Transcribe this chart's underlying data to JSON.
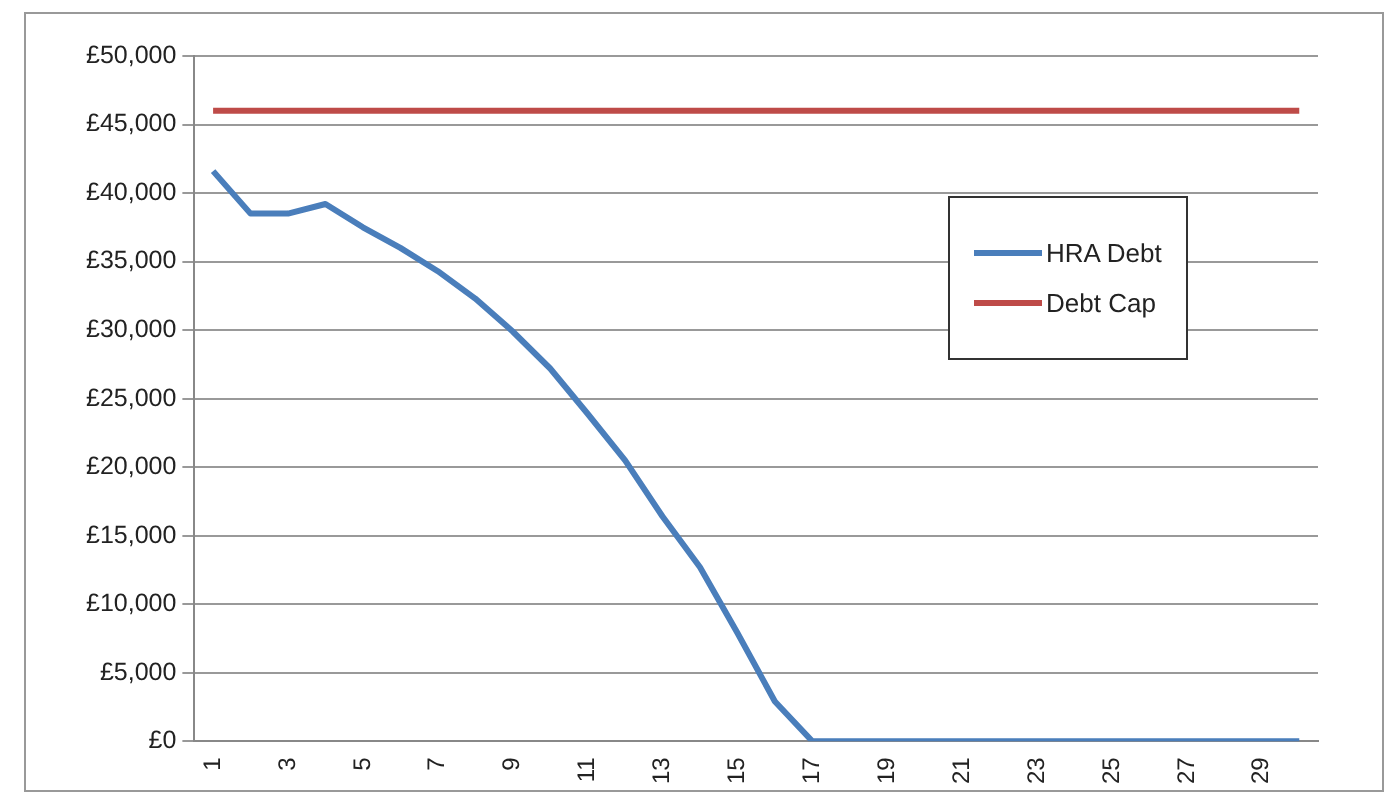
{
  "chart_data": {
    "type": "line",
    "categories": [
      "1",
      null,
      "3",
      null,
      "5",
      null,
      "7",
      null,
      "9",
      null,
      "11",
      null,
      "13",
      null,
      "15",
      null,
      "17",
      null,
      "19",
      null,
      "21",
      null,
      "23",
      null,
      "25",
      null,
      "27",
      null,
      "29",
      null
    ],
    "series": [
      {
        "name": "HRA Debt",
        "color": "#4a7ebb",
        "values": [
          41600,
          38500,
          38500,
          39200,
          37500,
          36000,
          34300,
          32300,
          29900,
          27200,
          23900,
          20500,
          16400,
          12700,
          7900,
          2900,
          0,
          0,
          0,
          0,
          0,
          0,
          0,
          0,
          0,
          0,
          0,
          0,
          0,
          0
        ]
      },
      {
        "name": "Debt Cap",
        "color": "#be4b48",
        "values": [
          46000,
          46000,
          46000,
          46000,
          46000,
          46000,
          46000,
          46000,
          46000,
          46000,
          46000,
          46000,
          46000,
          46000,
          46000,
          46000,
          46000,
          46000,
          46000,
          46000,
          46000,
          46000,
          46000,
          46000,
          46000,
          46000,
          46000,
          46000,
          46000,
          46000
        ]
      }
    ],
    "ylim": [
      0,
      50000
    ],
    "yticks": [
      {
        "value": 0,
        "label": "£0"
      },
      {
        "value": 5000,
        "label": "£5,000"
      },
      {
        "value": 10000,
        "label": "£10,000"
      },
      {
        "value": 15000,
        "label": "£15,000"
      },
      {
        "value": 20000,
        "label": "£20,000"
      },
      {
        "value": 25000,
        "label": "£25,000"
      },
      {
        "value": 30000,
        "label": "£30,000"
      },
      {
        "value": 35000,
        "label": "£35,000"
      },
      {
        "value": 40000,
        "label": "£40,000"
      },
      {
        "value": 45000,
        "label": "£45,000"
      },
      {
        "value": 50000,
        "label": "£50,000"
      }
    ],
    "grid": "y",
    "legend": "right",
    "marker": "none",
    "line_style": "solid"
  }
}
